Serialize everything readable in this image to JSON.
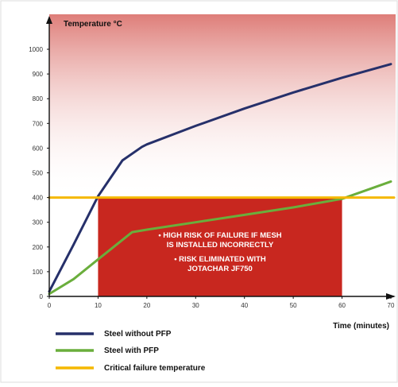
{
  "colors": {
    "risk_box": "#c8271f",
    "critical_line": "#f5b800",
    "steel_without": "#26306a",
    "steel_with": "#6aae3c",
    "gradient_top": "#c8271f",
    "gradient_bottom": "#ffffff"
  },
  "chart_data": {
    "type": "line",
    "ylabel": "Temperature °C",
    "xlabel": "Time (minutes)",
    "xlim": [
      0,
      70
    ],
    "ylim": [
      0,
      1000
    ],
    "xticks": [
      "0",
      "10",
      "20",
      "30",
      "40",
      "50",
      "60",
      "70"
    ],
    "yticks": [
      "0",
      "100",
      "200",
      "300",
      "400",
      "500",
      "600",
      "700",
      "800",
      "900",
      "1000"
    ],
    "grid": false,
    "legend_position": "bottom-left",
    "series": [
      {
        "name": "Steel without PFP",
        "color": "#26306a",
        "x": [
          0,
          5,
          10,
          15,
          19,
          20,
          30,
          40,
          50,
          60,
          70
        ],
        "y": [
          20,
          210,
          405,
          550,
          605,
          615,
          690,
          760,
          825,
          885,
          940
        ]
      },
      {
        "name": "Steel with PFP",
        "color": "#6aae3c",
        "x": [
          0,
          5,
          10,
          17,
          20,
          30,
          40,
          50,
          60,
          70
        ],
        "y": [
          10,
          70,
          150,
          260,
          270,
          300,
          330,
          360,
          395,
          465
        ]
      },
      {
        "name": "Critical failure temperature",
        "color": "#f5b800",
        "x": [
          0,
          70
        ],
        "y": [
          400,
          400
        ]
      }
    ],
    "annotations": {
      "risk_region": {
        "x": [
          10,
          60
        ],
        "y": [
          0,
          400
        ]
      },
      "lines": [
        "• HIGH RISK OF FAILURE IF MESH",
        "IS INSTALLED INCORRECTLY",
        "• RISK ELIMINATED WITH",
        "JOTACHAR JF750"
      ]
    }
  }
}
